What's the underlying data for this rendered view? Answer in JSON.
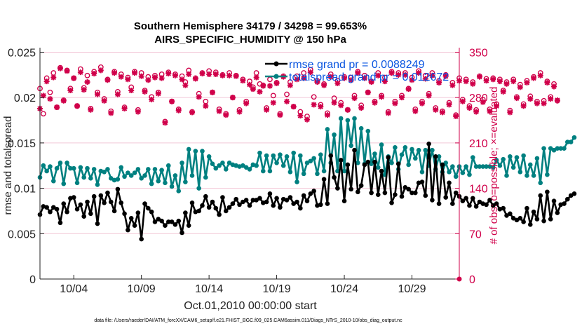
{
  "chart_data": {
    "type": "line",
    "title": "Southern Hemisphere 34179 / 34298 = 99.653%",
    "subtitle": "AIRS_SPECIFIC_HUMIDITY @ 150 hPa",
    "xlabel": "Oct.01,2010 00:00:00 start",
    "ylabel": "rmse and totalspread",
    "ylabel_right": "# of obs: o=possible; ×=evaluated",
    "x_tick_labels": [
      "10/04",
      "10/09",
      "10/14",
      "10/19",
      "10/24",
      "10/29"
    ],
    "x_tick_days": [
      4,
      9,
      14,
      19,
      24,
      29
    ],
    "xlim": [
      1.5,
      32.5
    ],
    "ylim": [
      0,
      0.0255
    ],
    "y_ticks": [
      "0",
      "0.005",
      "0.01",
      "0.015",
      "0.02",
      "0.025"
    ],
    "ylim_right": [
      0,
      357
    ],
    "y_ticks_right": [
      "0",
      "70",
      "140",
      "210",
      "280",
      "350"
    ],
    "grid": "horizontal",
    "legend_position": "top-right",
    "x_start": 1.5,
    "x_step": 0.25,
    "colors": {
      "rmse": "#000000",
      "totalspread": "#008080",
      "obs": "#d0004a",
      "legend_text": "#0a55e0",
      "grid": "#f2c6d6"
    },
    "series": [
      {
        "name": "rmse grand pr = 0.0088249",
        "values": [
          0.0071,
          0.008,
          0.0079,
          0.0074,
          0.0079,
          0.0077,
          0.0062,
          0.0083,
          0.0074,
          0.0089,
          0.009,
          0.0077,
          0.0082,
          0.0069,
          0.0085,
          0.0072,
          0.0091,
          0.0061,
          0.0092,
          0.0084,
          0.0095,
          0.0085,
          0.0075,
          0.0099,
          0.0084,
          0.0072,
          0.0054,
          0.0067,
          0.0059,
          0.0073,
          0.0044,
          0.0083,
          0.0078,
          0.0074,
          0.0063,
          0.0066,
          0.0064,
          0.0059,
          0.0063,
          0.0063,
          0.006,
          0.0064,
          0.0051,
          0.0073,
          0.0059,
          0.0084,
          0.0074,
          0.0075,
          0.0081,
          0.0091,
          0.0079,
          0.0085,
          0.0078,
          0.0071,
          0.009,
          0.0075,
          0.0079,
          0.0083,
          0.0088,
          0.0082,
          0.0085,
          0.0087,
          0.0081,
          0.0087,
          0.0087,
          0.0089,
          0.0084,
          0.0085,
          0.0094,
          0.0081,
          0.0089,
          0.0079,
          0.0088,
          0.0087,
          0.009,
          0.0083,
          0.0085,
          0.0078,
          0.0092,
          0.0086,
          0.0094,
          0.0097,
          0.0081,
          0.0082,
          0.011,
          0.0083,
          0.0136,
          0.0112,
          0.01,
          0.0131,
          0.0086,
          0.0126,
          0.0099,
          0.0142,
          0.0096,
          0.0103,
          0.0126,
          0.0129,
          0.0095,
          0.0129,
          0.0093,
          0.0119,
          0.0095,
          0.0134,
          0.0084,
          0.0093,
          0.0127,
          0.0091,
          0.0101,
          0.0099,
          0.0095,
          0.0095,
          0.0106,
          0.0107,
          0.0092,
          0.0149,
          0.0087,
          0.0135,
          0.0083,
          0.0126,
          0.009,
          0.0106,
          0.0083,
          0.0095,
          0.0091,
          0.0086,
          0.0089,
          0.0081,
          0.0089,
          0.008,
          0.0085,
          0.0083,
          0.0082,
          0.0087,
          0.0081,
          0.0083,
          0.0077,
          0.0078,
          0.007,
          0.0072,
          0.0067,
          0.0065,
          0.0067,
          0.0063,
          0.0078,
          0.006,
          0.0074,
          0.0066,
          0.0092,
          0.0064,
          0.0096,
          0.0066,
          0.0086,
          0.0073,
          0.0082,
          0.0083,
          0.0088,
          0.0092,
          0.0094
        ]
      },
      {
        "name": "totalspread grand pr = 0.012672",
        "values": [
          0.0112,
          0.0125,
          0.0119,
          0.0124,
          0.0108,
          0.0122,
          0.0128,
          0.0105,
          0.0128,
          0.0122,
          0.0122,
          0.0106,
          0.0123,
          0.0112,
          0.0122,
          0.0111,
          0.0121,
          0.0104,
          0.0119,
          0.0118,
          0.0121,
          0.0111,
          0.0109,
          0.011,
          0.0123,
          0.0113,
          0.0117,
          0.0114,
          0.0117,
          0.0121,
          0.0111,
          0.0114,
          0.0121,
          0.0105,
          0.0121,
          0.0108,
          0.012,
          0.0106,
          0.0125,
          0.0102,
          0.0114,
          0.0097,
          0.0128,
          0.0107,
          0.0143,
          0.0114,
          0.0141,
          0.01,
          0.0141,
          0.0112,
          0.0135,
          0.0127,
          0.0122,
          0.0125,
          0.0128,
          0.0121,
          0.0128,
          0.0126,
          0.0125,
          0.0124,
          0.0125,
          0.0123,
          0.0121,
          0.0126,
          0.0125,
          0.0139,
          0.0119,
          0.0136,
          0.0119,
          0.0136,
          0.0128,
          0.0137,
          0.0125,
          0.0135,
          0.0118,
          0.0139,
          0.0107,
          0.0136,
          0.0116,
          0.0128,
          0.013,
          0.0133,
          0.0116,
          0.0137,
          0.0119,
          0.0165,
          0.0128,
          0.0159,
          0.0119,
          0.0177,
          0.0119,
          0.0175,
          0.0147,
          0.0177,
          0.0128,
          0.0166,
          0.0127,
          0.0163,
          0.0127,
          0.0138,
          0.0123,
          0.0148,
          0.0115,
          0.0135,
          0.0128,
          0.0145,
          0.0121,
          0.0137,
          0.0145,
          0.0126,
          0.0143,
          0.0133,
          0.0142,
          0.0118,
          0.0142,
          0.0125,
          0.0142,
          0.0121,
          0.0135,
          0.0118,
          0.0128,
          0.0118,
          0.0124,
          0.0113,
          0.0124,
          0.0117,
          0.0124,
          0.0115,
          0.0134,
          0.0124,
          0.0124,
          0.0124,
          0.0124,
          0.0124,
          0.0123,
          0.0131,
          0.0125,
          0.0132,
          0.0114,
          0.0135,
          0.0123,
          0.0134,
          0.0118,
          0.0136,
          0.0114,
          0.0126,
          0.0114,
          0.0133,
          0.0106,
          0.0144,
          0.0115,
          0.0144,
          0.0142,
          0.0144,
          0.0144,
          0.0144,
          0.0151,
          0.0151,
          0.0156
        ]
      },
      {
        "name": "# of obs possible",
        "axis": "right",
        "marker": "o",
        "values": [
          294,
          255,
          310,
          288,
          318,
          265,
          326,
          276,
          322,
          294,
          310,
          267,
          324,
          295,
          314,
          263,
          320,
          288,
          327,
          278,
          308,
          259,
          320,
          289,
          316,
          265,
          311,
          296,
          320,
          261,
          318,
          291,
          312,
          281,
          314,
          288,
          316,
          243,
          319,
          274,
          316,
          262,
          313,
          304,
          322,
          258,
          310,
          286,
          318,
          274,
          321,
          288,
          319,
          262,
          315,
          255,
          318,
          280,
          314,
          261,
          308,
          274,
          305,
          296,
          318,
          301,
          299,
          264,
          308,
          283,
          303,
          255,
          313,
          285,
          304,
          266,
          313,
          258,
          318,
          251,
          323,
          281,
          306,
          269,
          301,
          256,
          316,
          279,
          306,
          272,
          312,
          261,
          311,
          283,
          320,
          268,
          314,
          288,
          305,
          274,
          318,
          283,
          311,
          258,
          320,
          274,
          318,
          283,
          318,
          294,
          311,
          262,
          321,
          274,
          314,
          286,
          318,
          264,
          306,
          259,
          315,
          272,
          303,
          253,
          310,
          277,
          308,
          267,
          304,
          261,
          313,
          277,
          309,
          262,
          310,
          270,
          308,
          291,
          304,
          260,
          308,
          281,
          300,
          270,
          306,
          282,
          312,
          274,
          318,
          275,
          305,
          281,
          301,
          275
        ]
      },
      {
        "name": "# of obs evaluated",
        "axis": "right",
        "marker": "x",
        "values": [
          263,
          283,
          305,
          278,
          311,
          265,
          325,
          275,
          321,
          291,
          310,
          267,
          319,
          292,
          304,
          261,
          317,
          285,
          322,
          275,
          307,
          256,
          318,
          285,
          312,
          263,
          308,
          291,
          318,
          258,
          313,
          289,
          307,
          277,
          311,
          286,
          310,
          241,
          317,
          274,
          314,
          260,
          308,
          299,
          316,
          257,
          309,
          281,
          317,
          267,
          316,
          288,
          316,
          259,
          314,
          253,
          314,
          280,
          313,
          258,
          306,
          271,
          300,
          293,
          311,
          289,
          298,
          261,
          298,
          272,
          302,
          253,
          312,
          274,
          299,
          266,
          308,
          252,
          310,
          246,
          319,
          269,
          304,
          266,
          299,
          253,
          312,
          272,
          302,
          268,
          310,
          261,
          307,
          279,
          318,
          264,
          310,
          288,
          304,
          272,
          314,
          281,
          305,
          256,
          318,
          271,
          315,
          280,
          315,
          293,
          307,
          259,
          318,
          271,
          309,
          283,
          314,
          261,
          303,
          257,
          313,
          269,
          299,
          251,
          306,
          274,
          305,
          264,
          301,
          258,
          312,
          273,
          306,
          259,
          308,
          267,
          305,
          289,
          301,
          257,
          305,
          279,
          296,
          267,
          303,
          278,
          310,
          271,
          314,
          271,
          303,
          278,
          297,
          276
        ]
      }
    ]
  },
  "footer": {
    "text": "data file: /Users/raeder/DAI/ATM_forcXX/CAM6_setup/f.e21.FHIST_BGC.f09_025.CAM6assim.011/Diags_NTrS_2010-10/obs_diag_output.nc"
  }
}
